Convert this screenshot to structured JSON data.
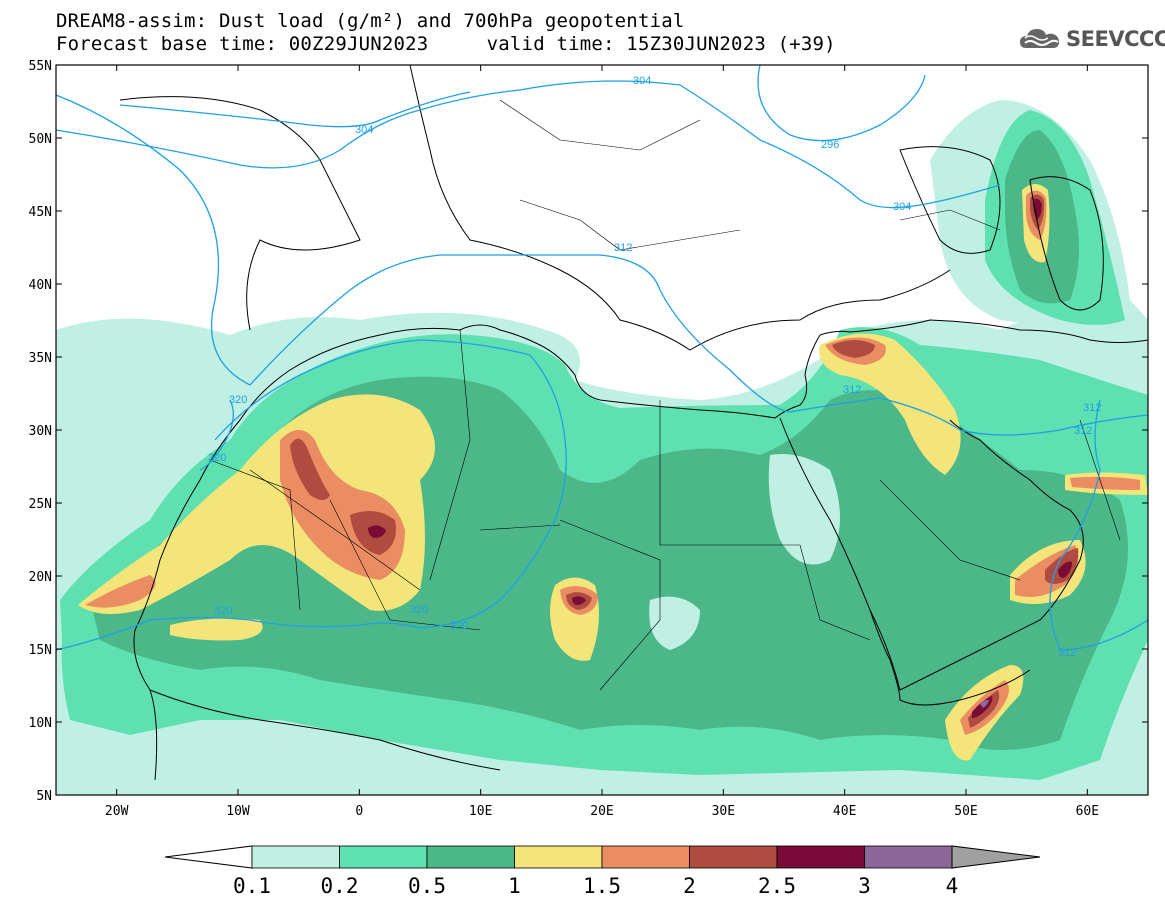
{
  "header": {
    "title_line1": "DREAM8-assim: Dust load (g/m²) and 700hPa geopotential",
    "title_line2": "Forecast base time: 00Z29JUN2023     valid time: 15Z30JUN2023 (+39)"
  },
  "logo": {
    "text": "SEEVCCC",
    "icon": "cloud-icon"
  },
  "map": {
    "lon_range": [
      -25,
      65
    ],
    "lat_range": [
      5,
      55
    ],
    "lat_labels": [
      "55N",
      "50N",
      "45N",
      "40N",
      "35N",
      "30N",
      "25N",
      "20N",
      "15N",
      "10N",
      "5N"
    ],
    "lon_labels": [
      "20W",
      "10W",
      "0",
      "10E",
      "20E",
      "30E",
      "40E",
      "50E",
      "60E"
    ],
    "contour_labels": [
      "304",
      "304",
      "296",
      "304",
      "312",
      "320",
      "320",
      "320",
      "320",
      "320",
      "312",
      "312",
      "312",
      "312"
    ]
  },
  "colorbar": {
    "labels": [
      "0.1",
      "0.2",
      "0.5",
      "1",
      "1.5",
      "2",
      "2.5",
      "3",
      "4"
    ],
    "colors": [
      "#bff0e3",
      "#5ee0b0",
      "#4cb88a",
      "#f3e57a",
      "#ea8d62",
      "#ae4c3f",
      "#7a0a36",
      "#8d6799"
    ],
    "below_color": "#ffffff",
    "above_color": "#a0a0a0"
  }
}
